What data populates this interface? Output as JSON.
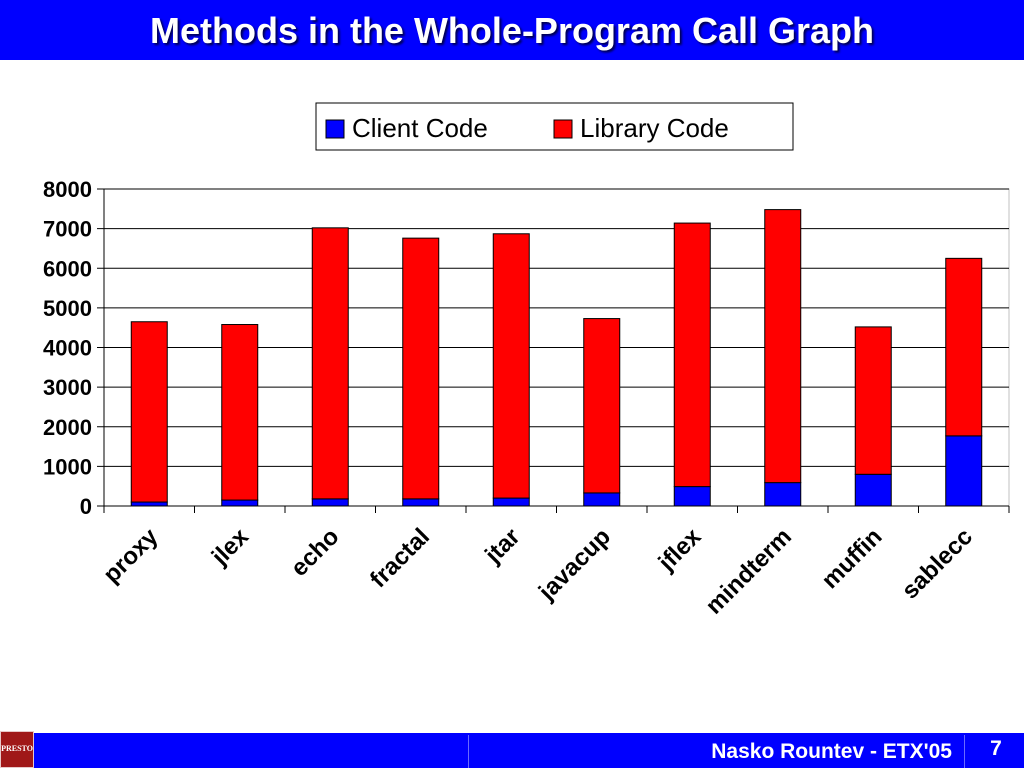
{
  "slide": {
    "title": "Methods in the Whole-Program Call Graph",
    "footer_text": "Nasko Rountev - ETX'05",
    "page_number": "7",
    "logo_text": "PRESTO",
    "logo_icon": "presto-logo-icon",
    "colors": {
      "bar": "#0000ff",
      "title_text": "#ffffff"
    }
  },
  "chart_data": {
    "type": "bar",
    "stacked": true,
    "categories": [
      "proxy",
      "jlex",
      "echo",
      "fractal",
      "jtar",
      "javacup",
      "jflex",
      "mindterm",
      "muffin",
      "sablecc"
    ],
    "series": [
      {
        "name": "Client Code",
        "color": "#0000ff",
        "values": [
          100,
          150,
          180,
          180,
          200,
          330,
          490,
          590,
          800,
          1770
        ]
      },
      {
        "name": "Library Code",
        "color": "#ff0000",
        "values": [
          4550,
          4430,
          6840,
          6580,
          6670,
          4400,
          6650,
          6890,
          3720,
          4480
        ]
      }
    ],
    "yticks": [
      "0",
      "1000",
      "2000",
      "3000",
      "4000",
      "5000",
      "6000",
      "7000",
      "8000"
    ],
    "ylim": [
      0,
      8000
    ],
    "grid": true,
    "legend": "top-center",
    "title": "",
    "xlabel": "",
    "ylabel": ""
  }
}
